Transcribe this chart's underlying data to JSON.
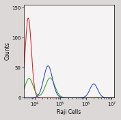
{
  "title": "",
  "xlabel": "Raji Cells",
  "ylabel": "Counts",
  "xlim_log": [
    3.58,
    7.1
  ],
  "ylim": [
    0,
    155
  ],
  "yticks": [
    0,
    50,
    100,
    150
  ],
  "plot_bg": "#f5f3f3",
  "fig_bg": "#dcd8d8",
  "red_color": "#d42020",
  "green_color": "#3a9a28",
  "blue_color": "#2848c0",
  "red_peak_log": 3.75,
  "red_peak_height": 133,
  "red_sigma": 0.12,
  "green_peak1_log": 3.78,
  "green_peak1_height": 32,
  "green_sigma1": 0.16,
  "green_peak2_log": 4.6,
  "green_peak2_height": 33,
  "green_sigma2": 0.18,
  "blue_peak1_log": 4.52,
  "blue_peak1_height": 53,
  "blue_sigma1": 0.17,
  "blue_peak2_log": 6.3,
  "blue_peak2_height": 23,
  "blue_sigma2": 0.15,
  "lw": 0.75,
  "figsize": [
    1.77,
    1.76
  ],
  "dpi": 100
}
